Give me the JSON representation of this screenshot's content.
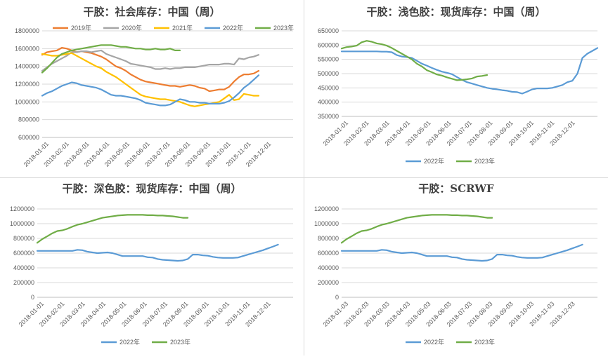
{
  "colors": {
    "2019年": "#ED7D31",
    "2020年": "#A5A5A5",
    "2021年": "#FFC000",
    "2022年": "#5B9BD5",
    "2023年": "#70AD47",
    "grid": "#d9d9d9",
    "axis": "#bfbfbf"
  },
  "chart_data": [
    {
      "type": "line",
      "title": "干胶：社会库存：中国（周）",
      "legend_position": "top",
      "grid": true,
      "ylim": [
        600000,
        1800000
      ],
      "yticks": [
        "600000",
        "800000",
        "1000000",
        "1200000",
        "1400000",
        "1600000",
        "1800000"
      ],
      "x_tick_labels": [
        "2018-01-01",
        "2018-02-01",
        "2018-03-01",
        "2018-04-01",
        "2018-05-01",
        "2018-06-01",
        "2018-07-01",
        "2018-08-01",
        "2018-09-01",
        "2018-10-01",
        "2018-11-01",
        "2018-12-01"
      ],
      "series": [
        {
          "name": "2019年",
          "values": [
            1530000,
            1560000,
            1570000,
            1580000,
            1610000,
            1600000,
            1580000,
            1560000,
            1570000,
            1560000,
            1550000,
            1530000,
            1510000,
            1480000,
            1440000,
            1400000,
            1380000,
            1350000,
            1310000,
            1280000,
            1250000,
            1230000,
            1220000,
            1210000,
            1200000,
            1190000,
            1180000,
            1180000,
            1170000,
            1180000,
            1190000,
            1180000,
            1160000,
            1150000,
            1120000,
            1130000,
            1140000,
            1140000,
            1170000,
            1230000,
            1280000,
            1310000,
            1310000,
            1320000,
            1350000
          ]
        },
        {
          "name": "2020年",
          "values": [
            1350000,
            1390000,
            1430000,
            1460000,
            1490000,
            1520000,
            1560000,
            1560000,
            1570000,
            1570000,
            1560000,
            1570000,
            1580000,
            1540000,
            1520000,
            1500000,
            1480000,
            1460000,
            1430000,
            1420000,
            1410000,
            1400000,
            1390000,
            1370000,
            1370000,
            1380000,
            1370000,
            1380000,
            1380000,
            1390000,
            1390000,
            1390000,
            1400000,
            1410000,
            1420000,
            1420000,
            1420000,
            1430000,
            1430000,
            1420000,
            1490000,
            1480000,
            1500000,
            1510000,
            1530000
          ]
        },
        {
          "name": "2021年",
          "values": [
            1540000,
            1530000,
            1520000,
            1520000,
            1530000,
            1540000,
            1550000,
            1520000,
            1490000,
            1460000,
            1430000,
            1400000,
            1380000,
            1340000,
            1310000,
            1280000,
            1240000,
            1200000,
            1160000,
            1120000,
            1080000,
            1060000,
            1050000,
            1040000,
            1030000,
            1030000,
            1020000,
            1010000,
            1000000,
            980000,
            960000,
            950000,
            960000,
            970000,
            980000,
            990000,
            1000000,
            1040000,
            1080000,
            1020000,
            1030000,
            1090000,
            1080000,
            1070000,
            1070000
          ]
        },
        {
          "name": "2022年",
          "values": [
            1070000,
            1100000,
            1120000,
            1150000,
            1180000,
            1200000,
            1220000,
            1210000,
            1190000,
            1180000,
            1170000,
            1160000,
            1140000,
            1110000,
            1080000,
            1070000,
            1070000,
            1060000,
            1050000,
            1040000,
            1020000,
            990000,
            980000,
            970000,
            960000,
            960000,
            970000,
            1000000,
            1030000,
            1020000,
            1000000,
            1000000,
            990000,
            990000,
            980000,
            980000,
            980000,
            990000,
            1010000,
            1050000,
            1100000,
            1160000,
            1200000,
            1250000,
            1300000
          ]
        },
        {
          "name": "2023年",
          "values": [
            1330000,
            1380000,
            1440000,
            1500000,
            1540000,
            1560000,
            1580000,
            1590000,
            1600000,
            1610000,
            1620000,
            1630000,
            1640000,
            1640000,
            1640000,
            1630000,
            1620000,
            1620000,
            1610000,
            1600000,
            1600000,
            1590000,
            1590000,
            1600000,
            1590000,
            1590000,
            1600000,
            1580000,
            1580000
          ]
        }
      ]
    },
    {
      "type": "line",
      "title": "干胶：浅色胶：现货库存：中国（周）",
      "legend_position": "bottom",
      "grid": true,
      "ylim": [
        350000,
        650000
      ],
      "yticks": [
        "350000",
        "400000",
        "450000",
        "500000",
        "550000",
        "600000",
        "650000"
      ],
      "x_tick_labels": [
        "2018-01-01",
        "2018-02-01",
        "2018-03-01",
        "2018-04-01",
        "2018-05-01",
        "2018-06-01",
        "2018-07-01",
        "2018-08-01",
        "2018-09-01",
        "2018-10-01",
        "2018-11-01",
        "2018-12-01"
      ],
      "series": [
        {
          "name": "2022年",
          "values": [
            578000,
            578000,
            578000,
            578000,
            578000,
            578000,
            578000,
            578000,
            577000,
            577000,
            575000,
            565000,
            560000,
            558000,
            555000,
            545000,
            535000,
            528000,
            520000,
            513000,
            507000,
            503000,
            498000,
            488000,
            478000,
            470000,
            465000,
            460000,
            455000,
            450000,
            447000,
            445000,
            442000,
            440000,
            436000,
            435000,
            430000,
            437000,
            445000,
            448000,
            448000,
            448000,
            450000,
            455000,
            460000,
            470000,
            475000,
            500000,
            555000,
            570000,
            580000,
            590000
          ]
        },
        {
          "name": "2023年",
          "values": [
            588000,
            593000,
            595000,
            598000,
            610000,
            615000,
            612000,
            606000,
            603000,
            598000,
            590000,
            580000,
            570000,
            560000,
            550000,
            535000,
            525000,
            512000,
            505000,
            497000,
            493000,
            487000,
            482000,
            477000,
            478000,
            480000,
            483000,
            490000,
            492000,
            495000
          ]
        }
      ]
    },
    {
      "type": "line",
      "title": "干胶：深色胶：现货库存：中国（周）",
      "legend_position": "bottom",
      "grid": true,
      "ylim": [
        0,
        1200000
      ],
      "yticks": [
        "0",
        "200000",
        "400000",
        "600000",
        "800000",
        "1000000",
        "1200000"
      ],
      "x_tick_labels": [
        "2018-01-01",
        "2018-02-01",
        "2018-03-01",
        "2018-04-01",
        "2018-05-01",
        "2018-06-01",
        "2018-07-01",
        "2018-08-01",
        "2018-09-01",
        "2018-10-01",
        "2018-11-01",
        "2018-12-01"
      ],
      "series": [
        {
          "name": "2022年",
          "values": [
            630000,
            630000,
            630000,
            630000,
            630000,
            630000,
            630000,
            630000,
            645000,
            640000,
            620000,
            610000,
            600000,
            605000,
            610000,
            600000,
            580000,
            560000,
            560000,
            560000,
            560000,
            560000,
            545000,
            540000,
            520000,
            510000,
            505000,
            500000,
            495000,
            500000,
            520000,
            580000,
            580000,
            570000,
            565000,
            550000,
            540000,
            535000,
            535000,
            535000,
            540000,
            560000,
            580000,
            600000,
            620000,
            640000,
            665000,
            690000,
            715000
          ]
        },
        {
          "name": "2023年",
          "values": [
            740000,
            790000,
            830000,
            870000,
            900000,
            910000,
            930000,
            960000,
            985000,
            1000000,
            1020000,
            1040000,
            1060000,
            1080000,
            1090000,
            1100000,
            1110000,
            1115000,
            1120000,
            1120000,
            1120000,
            1120000,
            1115000,
            1115000,
            1110000,
            1110000,
            1105000,
            1100000,
            1090000,
            1080000,
            1080000
          ]
        }
      ]
    },
    {
      "type": "line",
      "title": "干胶：SCRWF",
      "legend_position": "bottom",
      "grid": true,
      "ylim": [
        0,
        1200000
      ],
      "yticks": [
        "0",
        "200000",
        "400000",
        "600000",
        "800000",
        "1000000",
        "1200000"
      ],
      "x_tick_labels": [
        "2018-01-03",
        "2018-02-03",
        "2018-03-03",
        "2018-04-03",
        "2018-05-03",
        "2018-06-03",
        "2018-07-03",
        "2018-08-03",
        "2018-09-03",
        "2018-10-03",
        "2018-11-03",
        "2018-12-03"
      ],
      "series": [
        {
          "name": "2022年",
          "values": [
            630000,
            630000,
            630000,
            630000,
            630000,
            630000,
            630000,
            630000,
            645000,
            640000,
            620000,
            610000,
            600000,
            605000,
            610000,
            600000,
            580000,
            560000,
            560000,
            560000,
            560000,
            560000,
            545000,
            540000,
            520000,
            510000,
            505000,
            500000,
            495000,
            500000,
            520000,
            580000,
            580000,
            570000,
            565000,
            550000,
            540000,
            535000,
            535000,
            535000,
            540000,
            560000,
            580000,
            600000,
            620000,
            640000,
            665000,
            690000,
            715000
          ]
        },
        {
          "name": "2023年",
          "values": [
            740000,
            790000,
            830000,
            870000,
            900000,
            910000,
            930000,
            960000,
            985000,
            1000000,
            1020000,
            1040000,
            1060000,
            1080000,
            1090000,
            1100000,
            1110000,
            1115000,
            1120000,
            1120000,
            1120000,
            1120000,
            1115000,
            1115000,
            1110000,
            1110000,
            1105000,
            1100000,
            1090000,
            1080000,
            1080000
          ]
        }
      ]
    }
  ]
}
